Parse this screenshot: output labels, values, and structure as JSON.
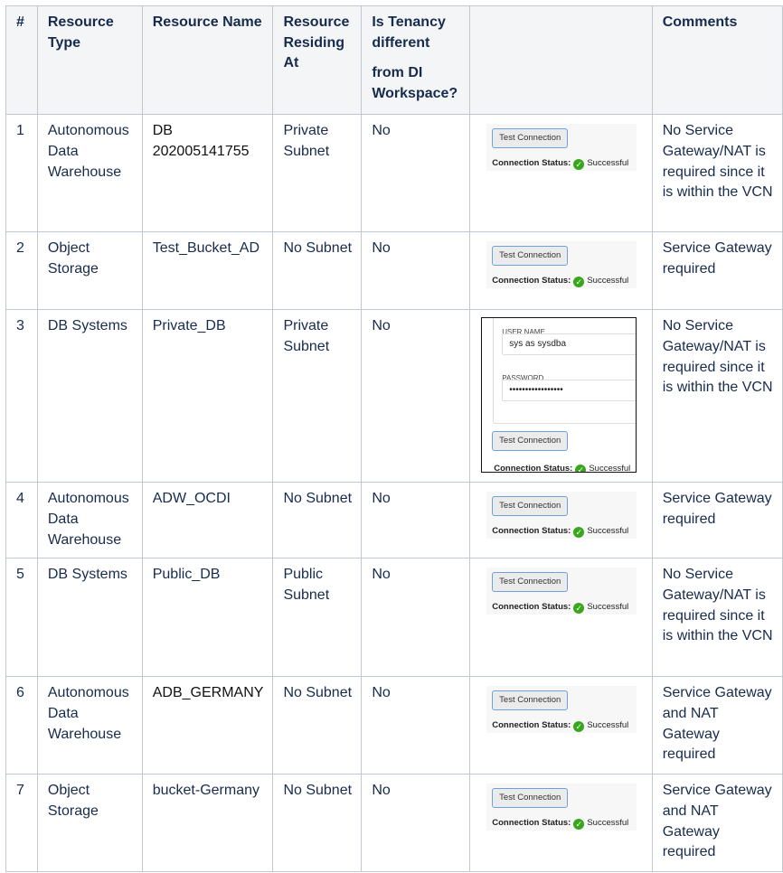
{
  "headers": {
    "num": "#",
    "type": "Resource Type",
    "name": "Resource Name",
    "residing": "Resource Residing At",
    "tenancy_1": "Is Tenancy different",
    "tenancy_2": "from DI Workspace?",
    "test": "",
    "comments": "Comments"
  },
  "test_widget": {
    "button_label": "Test Connection",
    "status_label": "Connection Status:",
    "status_value": "Successful",
    "status_icon": "check-circle-icon",
    "status_color": "#3aa61d",
    "user_name_label": "USER NAME",
    "user_name_value": "sys as sysdba",
    "password_label": "PASSWORD",
    "password_value": "•••••••••••••••••"
  },
  "rows": [
    {
      "num": "1",
      "type": "Autonomous Data Warehouse",
      "name": "DB 202005141755",
      "residing": "Private Subnet",
      "tenancy": "No",
      "comments": "No Service Gateway/NAT is required since it is within the VCN"
    },
    {
      "num": "2",
      "type": "Object Storage",
      "name": "Test_Bucket_AD",
      "residing": "No Subnet",
      "tenancy": "No",
      "comments": "Service Gateway required"
    },
    {
      "num": "3",
      "type": "DB Systems",
      "name": "Private_DB",
      "residing": "Private Subnet",
      "tenancy": "No",
      "comments": "No Service Gateway/NAT is required since it is within the VCN"
    },
    {
      "num": "4",
      "type": "Autonomous Data Warehouse",
      "name": "ADW_OCDI",
      "residing": "No Subnet",
      "tenancy": "No",
      "comments": "Service Gateway required"
    },
    {
      "num": "5",
      "type": "DB Systems",
      "name": "Public_DB",
      "residing": "Public Subnet",
      "tenancy": "No",
      "comments": "No Service Gateway/NAT is required since it is within the VCN"
    },
    {
      "num": "6",
      "type": "Autonomous Data Warehouse",
      "name": "ADB_GERMANY",
      "residing": "No Subnet",
      "tenancy": "No",
      "comments": "Service Gateway and NAT Gateway required"
    },
    {
      "num": "7",
      "type": "Object Storage",
      "name": "bucket-Germany",
      "residing": "No Subnet",
      "tenancy": "No",
      "comments": "Service Gateway and NAT Gateway required"
    }
  ]
}
